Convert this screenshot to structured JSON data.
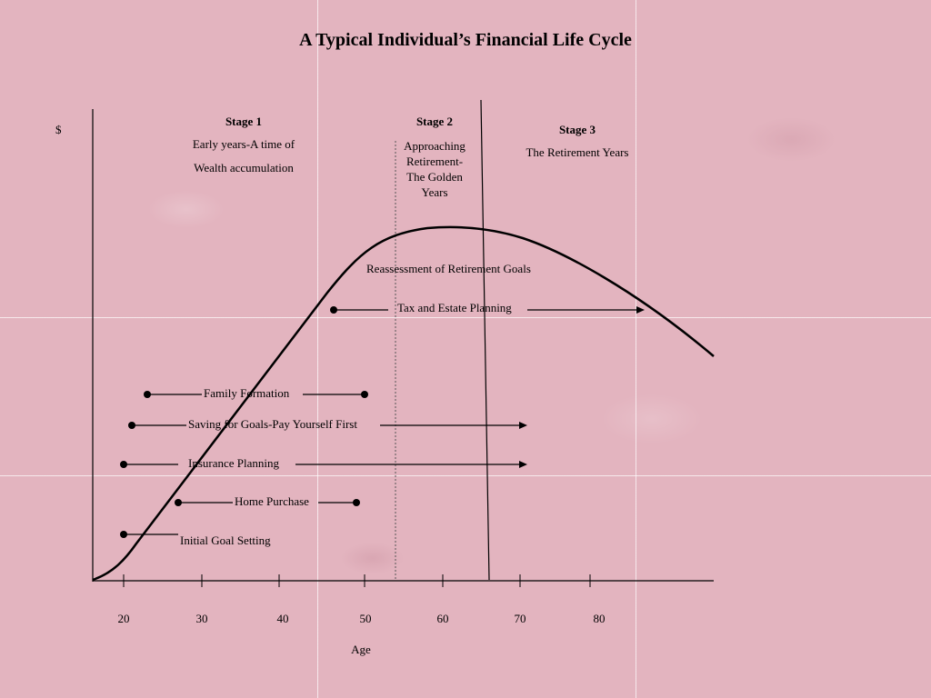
{
  "title": "A Typical Individual’s Financial Life Cycle",
  "y_axis_label": "$",
  "x_axis_label": "Age",
  "x_ticks": [
    "20",
    "30",
    "40",
    "50",
    "60",
    "70",
    "80"
  ],
  "stages": {
    "stage1": {
      "heading": "Stage 1",
      "line1": "Early years-A time of",
      "line2": "Wealth accumulation"
    },
    "stage2": {
      "heading": "Stage 2",
      "lines": [
        "Approaching",
        "Retirement-",
        "The Golden",
        "Years"
      ]
    },
    "stage3": {
      "heading": "Stage 3",
      "line1": "The Retirement Years"
    }
  },
  "activities": {
    "reassessment": "Reassessment of Retirement Goals",
    "tax_estate": "Tax and Estate Planning",
    "family": "Family Formation",
    "saving": "Saving for Goals-Pay Yourself First",
    "insurance": "Insurance Planning",
    "home": "Home Purchase",
    "initial": "Initial Goal Setting"
  }
}
